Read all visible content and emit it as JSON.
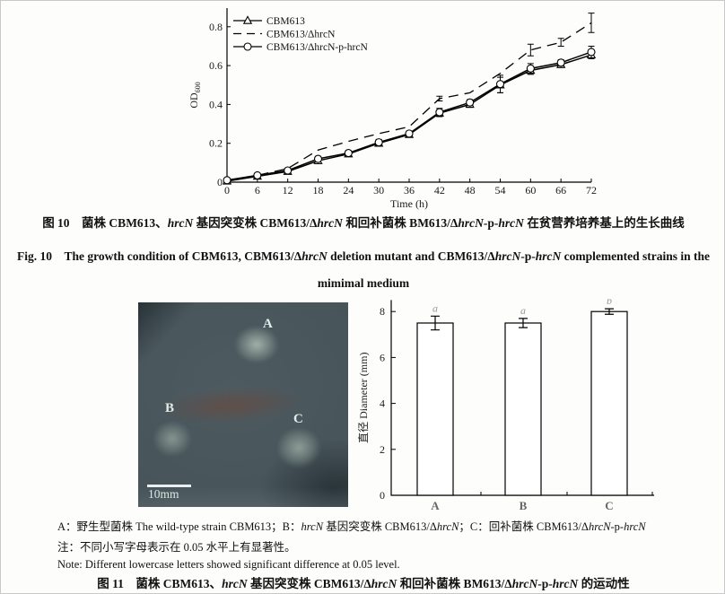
{
  "page": {
    "background": "#fdfdfc",
    "ink": "#111111"
  },
  "chart_data": [
    {
      "type": "line",
      "title": "",
      "xlabel": "Time (h)",
      "ylabel": "OD",
      "ylabel_sub": "600",
      "x": [
        0,
        6,
        12,
        18,
        24,
        30,
        36,
        42,
        48,
        54,
        60,
        66,
        72
      ],
      "xlim": [
        0,
        72
      ],
      "ylim": [
        0,
        0.88
      ],
      "yticks": [
        0,
        0.2,
        0.4,
        0.6,
        0.8
      ],
      "grid": false,
      "legend_position": "top-left",
      "series": [
        {
          "name": "CBM613",
          "marker": "triangle",
          "line": "solid",
          "color": "#000000",
          "values": [
            0.005,
            0.03,
            0.055,
            0.11,
            0.145,
            0.2,
            0.245,
            0.355,
            0.4,
            0.5,
            0.575,
            0.605,
            0.655
          ],
          "errors": [
            0,
            0,
            0.01,
            0.015,
            0.01,
            0.015,
            0.012,
            0.018,
            0.015,
            0.04,
            0.02,
            0.015,
            0.02
          ]
        },
        {
          "name": "CBM613/ΔhrcN",
          "marker": "none",
          "line": "dashed",
          "color": "#000000",
          "values": [
            0.005,
            0.035,
            0.07,
            0.165,
            0.21,
            0.25,
            0.285,
            0.43,
            0.46,
            0.56,
            0.68,
            0.72,
            0.82
          ],
          "errors": [
            0,
            0,
            0,
            0,
            0,
            0,
            0,
            0.012,
            0,
            0,
            0.03,
            0.02,
            0.05
          ]
        },
        {
          "name": "CBM613/ΔhrcN-p-hrcN",
          "marker": "circle",
          "line": "solid",
          "color": "#000000",
          "values": [
            0.01,
            0.035,
            0.06,
            0.12,
            0.15,
            0.205,
            0.25,
            0.36,
            0.41,
            0.505,
            0.585,
            0.615,
            0.67
          ],
          "errors": [
            0,
            0,
            0,
            0.012,
            0.01,
            0.015,
            0.012,
            0.02,
            0.015,
            0.045,
            0.025,
            0.015,
            0.03
          ]
        }
      ]
    },
    {
      "type": "bar",
      "title": "",
      "categories": [
        "A",
        "B",
        "C"
      ],
      "values": [
        7.5,
        7.5,
        8.0
      ],
      "errors": [
        0.3,
        0.2,
        0.12
      ],
      "sig_letters": [
        "a",
        "a",
        "b"
      ],
      "xlabel": "",
      "ylabel": "直径 Diameter (mm)",
      "ylim": [
        0,
        8.5
      ],
      "yticks": [
        0,
        2,
        4,
        6,
        8
      ],
      "grid": false,
      "bar_fill": "#ffffff",
      "bar_stroke": "#000000"
    }
  ],
  "photo": {
    "labels": [
      {
        "text": "A"
      },
      {
        "text": "B"
      },
      {
        "text": "C"
      }
    ],
    "scale_bar_text": "10mm"
  },
  "captions": {
    "fig10_cn": [
      {
        "t": "图 10 菌株 CBM613、"
      },
      {
        "t": "hrcN",
        "i": true
      },
      {
        "t": " 基因突变株 CBM613/Δ"
      },
      {
        "t": "hrcN",
        "i": true
      },
      {
        "t": " 和回补菌株 BM613/Δ"
      },
      {
        "t": "hrcN",
        "i": true
      },
      {
        "t": "-p-"
      },
      {
        "t": "hrcN",
        "i": true
      },
      {
        "t": " 在贫营养培养基上的生长曲线"
      }
    ],
    "fig10_en_line1": [
      {
        "t": "Fig. 10 The growth condition of CBM613, CBM613/Δ"
      },
      {
        "t": "hrcN",
        "i": true
      },
      {
        "t": " deletion mutant and CBM613/Δ"
      },
      {
        "t": "hrcN",
        "i": true
      },
      {
        "t": "-p-"
      },
      {
        "t": "hrcN",
        "i": true
      },
      {
        "t": " complemented strains in the"
      }
    ],
    "fig10_en_line2": [
      {
        "t": "mimimal medium"
      }
    ],
    "fig11_cn": [
      {
        "t": "图 11 菌株 CBM613、"
      },
      {
        "t": "hrcN",
        "i": true
      },
      {
        "t": " 基因突变株 CBM613/Δ"
      },
      {
        "t": "hrcN",
        "i": true
      },
      {
        "t": " 和回补菌株 BM613/Δ"
      },
      {
        "t": "hrcN",
        "i": true
      },
      {
        "t": "-p-"
      },
      {
        "t": "hrcN",
        "i": true
      },
      {
        "t": " 的运动性"
      }
    ]
  },
  "notes": {
    "line_a": [
      {
        "t": "A：野生型菌株 The wild-type strain CBM613；B："
      },
      {
        "t": "hrcN",
        "i": true
      },
      {
        "t": " 基因突变株 CBM613/Δ"
      },
      {
        "t": "hrcN",
        "i": true
      },
      {
        "t": "；C：回补菌株 CBM613/Δ"
      },
      {
        "t": "hrcN",
        "i": true
      },
      {
        "t": "-p-"
      },
      {
        "t": "hrcN",
        "i": true
      }
    ],
    "line_cn": [
      {
        "t": "注：不同小写字母表示在 0.05 水平上有显著性。"
      }
    ],
    "line_en": [
      {
        "t": "Note: Different lowercase letters showed significant difference at 0.05 level."
      }
    ]
  }
}
